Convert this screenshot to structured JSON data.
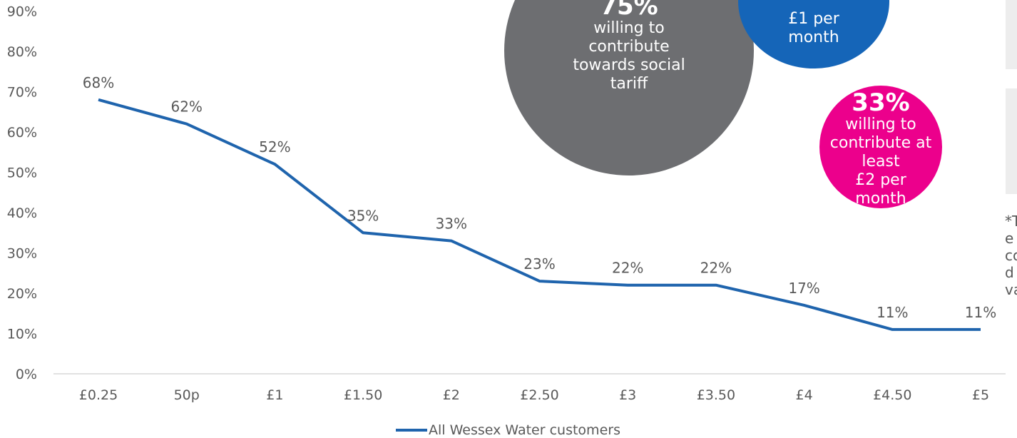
{
  "chart_data": {
    "type": "line",
    "categories": [
      "£0.25",
      "50p",
      "£1",
      "£1.50",
      "£2",
      "£2.50",
      "£3",
      "£3.50",
      "£4",
      "£4.50",
      "£5"
    ],
    "series": [
      {
        "name": "All Wessex Water customers",
        "values": [
          68,
          62,
          52,
          35,
          33,
          23,
          22,
          22,
          17,
          11,
          11
        ]
      }
    ],
    "data_labels": [
      "68%",
      "62%",
      "52%",
      "35%",
      "33%",
      "23%",
      "22%",
      "22%",
      "17%",
      "11%",
      "11%"
    ],
    "y_ticks": [
      "0%",
      "10%",
      "20%",
      "30%",
      "40%",
      "50%",
      "60%",
      "70%",
      "80%",
      "90%"
    ],
    "ylim": [
      0,
      90
    ],
    "grid": false,
    "legend_position": "bottom",
    "series_color": "#1f64ad"
  },
  "callouts": {
    "grey": {
      "pct": "75%",
      "text": "willing to\ncontribute\ntowards social\ntariff",
      "color": "#6d6e71"
    },
    "blue": {
      "text": "£1 per\nmonth",
      "color": "#1565b8"
    },
    "pink": {
      "pct": "33%",
      "text": "willing to\ncontribute at\nleast\n£2 per\nmonth",
      "color": "#ec008c"
    }
  },
  "side_note": "*T\ne\nco\nd\nva"
}
